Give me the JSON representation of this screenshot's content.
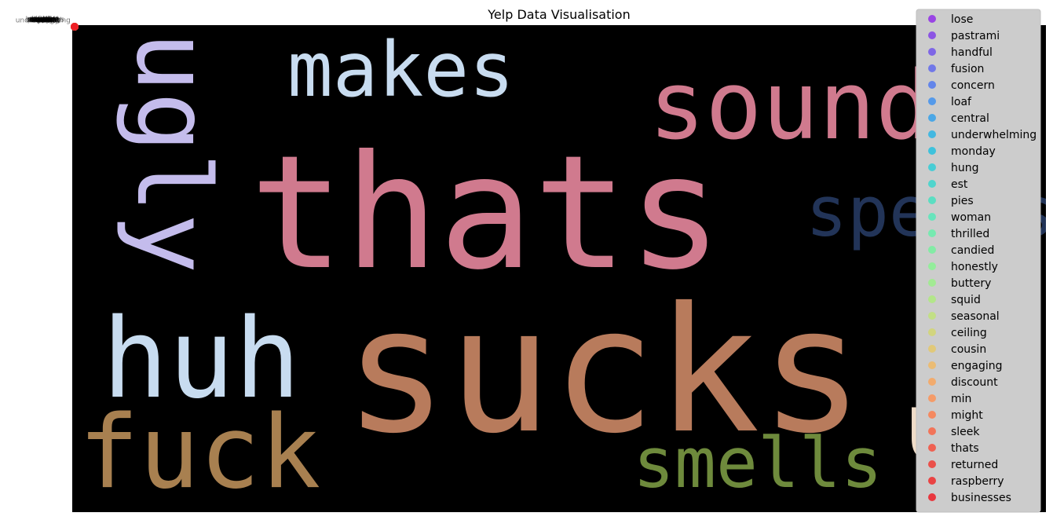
{
  "chart_data": {
    "type": "scatter",
    "title": "Yelp Data Visualisation",
    "xlabel": "",
    "ylabel": "",
    "grid": false,
    "legend_placement": "top-right",
    "background": "#000000",
    "words": [
      {
        "text": "thats",
        "color": "#d07a8e",
        "orientation": "horizontal"
      },
      {
        "text": "sucks",
        "color": "#b87b5c",
        "orientation": "horizontal"
      },
      {
        "text": "sounds",
        "color": "#d07a8e",
        "orientation": "horizontal"
      },
      {
        "text": "makes",
        "color": "#c8dcf0",
        "orientation": "horizontal"
      },
      {
        "text": "ugly",
        "color": "#c4bcec",
        "orientation": "vertical"
      },
      {
        "text": "huh",
        "color": "#c8dcf0",
        "orientation": "horizontal"
      },
      {
        "text": "fuck",
        "color": "#a88050",
        "orientation": "horizontal"
      },
      {
        "text": "smells",
        "color": "#6e8a3c",
        "orientation": "horizontal"
      },
      {
        "text": "speaks",
        "color": "#223458",
        "orientation": "horizontal"
      },
      {
        "text": "um",
        "color": "#efdcc8",
        "orientation": "horizontal"
      }
    ],
    "series": [
      {
        "name": "lose",
        "color": "#8f2be8"
      },
      {
        "name": "pastrami",
        "color": "#8040e8"
      },
      {
        "name": "handful",
        "color": "#7054ea"
      },
      {
        "name": "fusion",
        "color": "#6068ec"
      },
      {
        "name": "concern",
        "color": "#5078ee"
      },
      {
        "name": "loaf",
        "color": "#4090ee"
      },
      {
        "name": "central",
        "color": "#34a0ea"
      },
      {
        "name": "underwhelming",
        "color": "#2ab4e4"
      },
      {
        "name": "monday",
        "color": "#24c0de"
      },
      {
        "name": "hung",
        "color": "#30ccd6"
      },
      {
        "name": "est",
        "color": "#3ad6cc"
      },
      {
        "name": "pies",
        "color": "#46e0c0"
      },
      {
        "name": "woman",
        "color": "#56e8b8"
      },
      {
        "name": "thrilled",
        "color": "#66eeaa"
      },
      {
        "name": "candied",
        "color": "#76f09e"
      },
      {
        "name": "honestly",
        "color": "#88f292"
      },
      {
        "name": "buttery",
        "color": "#9aee88"
      },
      {
        "name": "squid",
        "color": "#aeea7e"
      },
      {
        "name": "seasonal",
        "color": "#c0e278"
      },
      {
        "name": "ceiling",
        "color": "#d2d670"
      },
      {
        "name": "cousin",
        "color": "#e4c86a"
      },
      {
        "name": "engaging",
        "color": "#f0b864"
      },
      {
        "name": "discount",
        "color": "#f8a45c"
      },
      {
        "name": "min",
        "color": "#fc9256"
      },
      {
        "name": "might",
        "color": "#fc7c4c"
      },
      {
        "name": "sleek",
        "color": "#f86444"
      },
      {
        "name": "thats",
        "color": "#f44e3c"
      },
      {
        "name": "returned",
        "color": "#f03a32"
      },
      {
        "name": "raspberry",
        "color": "#ee2a2a"
      },
      {
        "name": "businesses",
        "color": "#ec1c24"
      }
    ]
  }
}
